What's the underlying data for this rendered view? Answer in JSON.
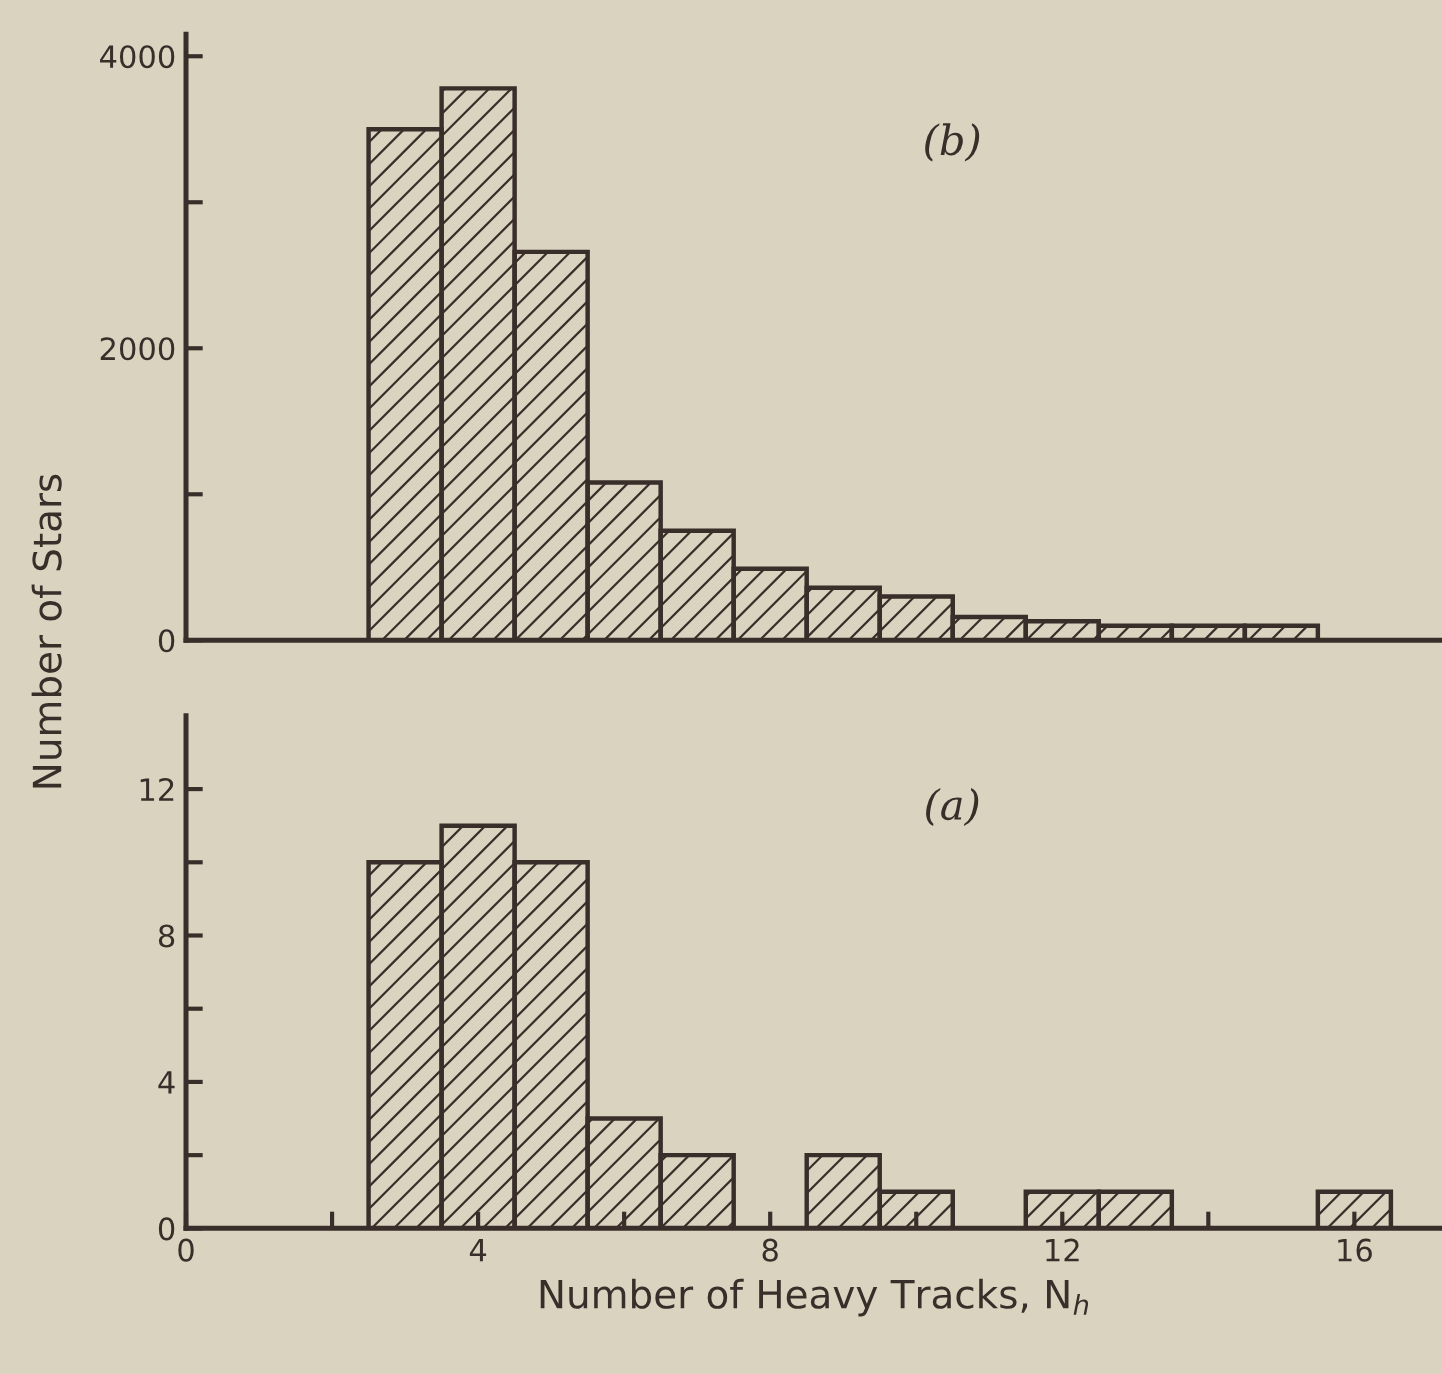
{
  "chart_data": [
    {
      "type": "histogram",
      "ylabel": "Number of Stars",
      "annotations": [
        "(b)"
      ],
      "bins": [
        2.5,
        3.5,
        4.5,
        5.5,
        6.5,
        7.5,
        8.5,
        9.5,
        10.5,
        11.5,
        12.5,
        13.5,
        14.5,
        15.5
      ],
      "values": [
        3500,
        3780,
        2660,
        1080,
        750,
        490,
        360,
        300,
        160,
        130,
        100,
        100,
        100
      ],
      "color": "#3a2e2a",
      "xlim": [
        0,
        17.2
      ],
      "ylim": [
        0,
        4150
      ],
      "yticks": [
        0,
        {
          "value": 1000,
          "label": null
        },
        2000,
        {
          "value": 3000,
          "label": null
        },
        4000
      ],
      "tick_labels": "y",
      "grid": false,
      "legend": false
    },
    {
      "type": "histogram",
      "xlabel": "Number of Heavy Tracks, N$_{h}$",
      "annotations": [
        "(a)"
      ],
      "bins": [
        2.5,
        3.5,
        4.5,
        5.5,
        6.5,
        7.5,
        8.5,
        9.5,
        10.5,
        11.5,
        12.5,
        13.5,
        14.5,
        15.5,
        16.5
      ],
      "values": [
        10,
        11,
        10,
        3,
        2,
        0,
        2,
        1,
        0,
        1,
        1,
        0,
        0,
        1
      ],
      "color": "#3a2e2a",
      "xlim": [
        0,
        17.2
      ],
      "ylim": [
        0,
        14
      ],
      "xticks": [
        0,
        {
          "value": 2,
          "label": null
        },
        4,
        {
          "value": 6,
          "label": null
        },
        8,
        {
          "value": 10,
          "label": null
        },
        12,
        {
          "value": 14,
          "label": null
        },
        16
      ],
      "yticks": [
        0,
        {
          "value": 2,
          "label": null
        },
        4,
        {
          "value": 6,
          "label": null
        },
        8,
        {
          "value": 10,
          "label": null
        },
        12
      ],
      "grid": false,
      "legend": false
    }
  ]
}
